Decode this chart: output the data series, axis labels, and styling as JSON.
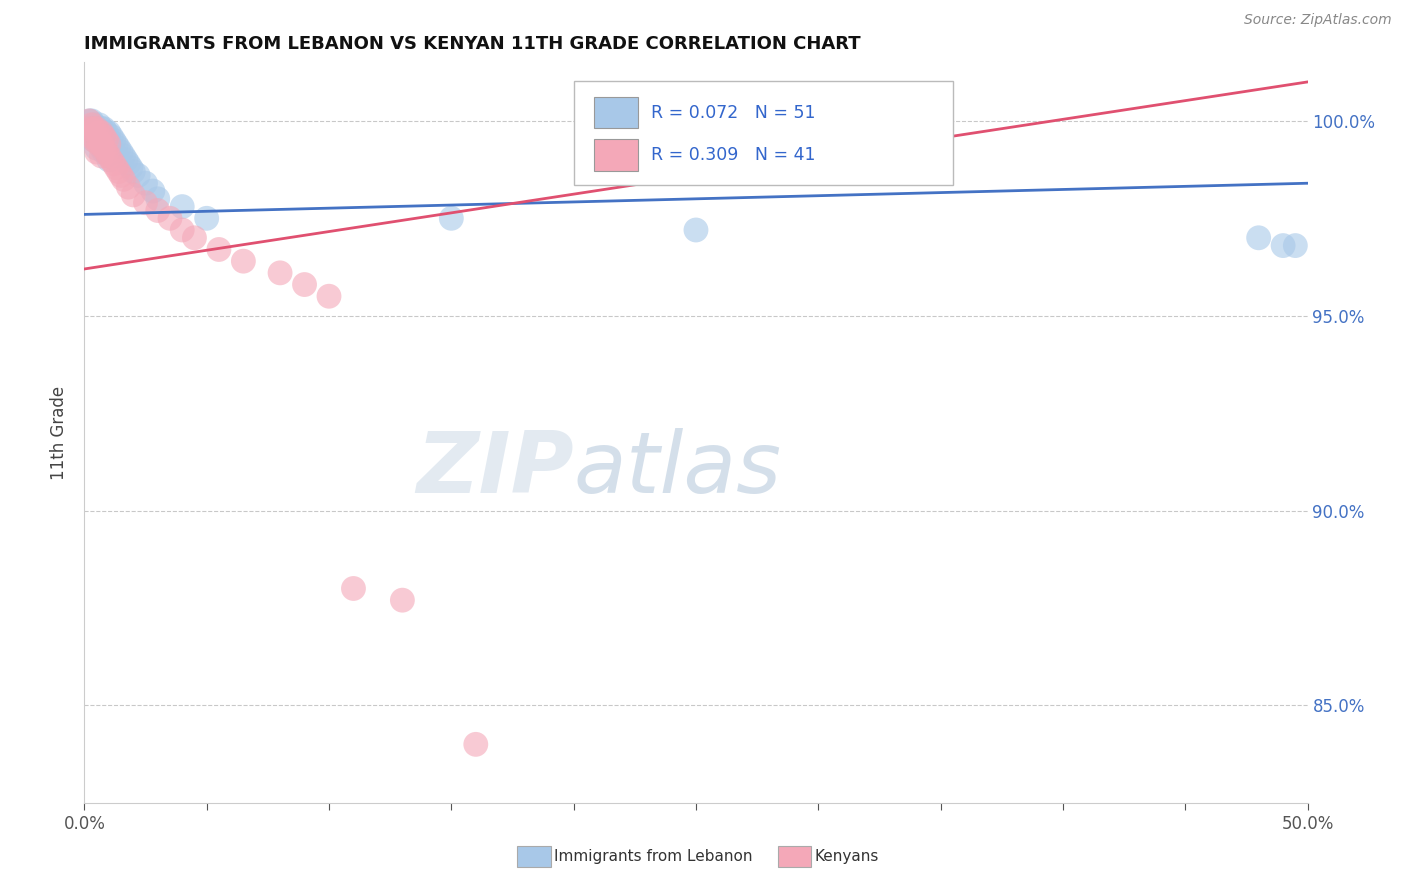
{
  "title": "IMMIGRANTS FROM LEBANON VS KENYAN 11TH GRADE CORRELATION CHART",
  "source_text": "Source: ZipAtlas.com",
  "ylabel": "11th Grade",
  "xlim": [
    0.0,
    0.5
  ],
  "ylim": [
    0.825,
    1.015
  ],
  "xticks_major": [
    0.0,
    0.5
  ],
  "xticks_minor": [
    0.05,
    0.1,
    0.15,
    0.2,
    0.25,
    0.3,
    0.35,
    0.4,
    0.45
  ],
  "xticklabels_major": [
    "0.0%",
    "50.0%"
  ],
  "yticks": [
    0.85,
    0.9,
    0.95,
    1.0
  ],
  "yticklabels": [
    "85.0%",
    "90.0%",
    "95.0%",
    "100.0%"
  ],
  "legend_blue_label": "Immigrants from Lebanon",
  "legend_pink_label": "Kenyans",
  "blue_R": 0.072,
  "blue_N": 51,
  "pink_R": 0.309,
  "pink_N": 41,
  "blue_color": "#a8c8e8",
  "pink_color": "#f4a8b8",
  "blue_line_color": "#4472c4",
  "pink_line_color": "#e05070",
  "watermark_zip": "ZIP",
  "watermark_atlas": "atlas",
  "blue_scatter_x": [
    0.002,
    0.002,
    0.003,
    0.003,
    0.004,
    0.004,
    0.004,
    0.005,
    0.005,
    0.005,
    0.006,
    0.006,
    0.006,
    0.007,
    0.007,
    0.007,
    0.008,
    0.008,
    0.008,
    0.008,
    0.009,
    0.009,
    0.009,
    0.01,
    0.01,
    0.01,
    0.01,
    0.011,
    0.011,
    0.012,
    0.012,
    0.013,
    0.013,
    0.014,
    0.015,
    0.016,
    0.017,
    0.018,
    0.019,
    0.02,
    0.022,
    0.025,
    0.028,
    0.03,
    0.04,
    0.05,
    0.15,
    0.25,
    0.48,
    0.49,
    0.495
  ],
  "blue_scatter_y": [
    1.0,
    0.998,
    1.0,
    0.997,
    0.999,
    0.997,
    0.995,
    0.998,
    0.996,
    0.993,
    0.999,
    0.997,
    0.995,
    0.998,
    0.996,
    0.993,
    0.998,
    0.996,
    0.994,
    0.992,
    0.997,
    0.995,
    0.992,
    0.997,
    0.995,
    0.993,
    0.99,
    0.996,
    0.993,
    0.995,
    0.992,
    0.994,
    0.991,
    0.993,
    0.992,
    0.991,
    0.99,
    0.989,
    0.988,
    0.987,
    0.986,
    0.984,
    0.982,
    0.98,
    0.978,
    0.975,
    0.975,
    0.972,
    0.97,
    0.968,
    0.968
  ],
  "pink_scatter_x": [
    0.002,
    0.002,
    0.003,
    0.003,
    0.004,
    0.004,
    0.005,
    0.005,
    0.005,
    0.006,
    0.006,
    0.007,
    0.007,
    0.007,
    0.008,
    0.008,
    0.009,
    0.009,
    0.01,
    0.01,
    0.011,
    0.012,
    0.013,
    0.014,
    0.015,
    0.016,
    0.018,
    0.02,
    0.025,
    0.03,
    0.035,
    0.04,
    0.045,
    0.055,
    0.065,
    0.08,
    0.09,
    0.1,
    0.11,
    0.13,
    0.16
  ],
  "pink_scatter_y": [
    1.0,
    0.998,
    0.999,
    0.996,
    0.998,
    0.995,
    0.998,
    0.995,
    0.992,
    0.997,
    0.994,
    0.997,
    0.994,
    0.991,
    0.996,
    0.993,
    0.995,
    0.992,
    0.994,
    0.991,
    0.99,
    0.989,
    0.988,
    0.987,
    0.986,
    0.985,
    0.983,
    0.981,
    0.979,
    0.977,
    0.975,
    0.972,
    0.97,
    0.967,
    0.964,
    0.961,
    0.958,
    0.955,
    0.88,
    0.877,
    0.84
  ],
  "blue_line_x": [
    0.0,
    0.5
  ],
  "blue_line_y": [
    0.976,
    0.984
  ],
  "pink_line_x": [
    0.0,
    0.5
  ],
  "pink_line_y": [
    0.962,
    1.01
  ]
}
